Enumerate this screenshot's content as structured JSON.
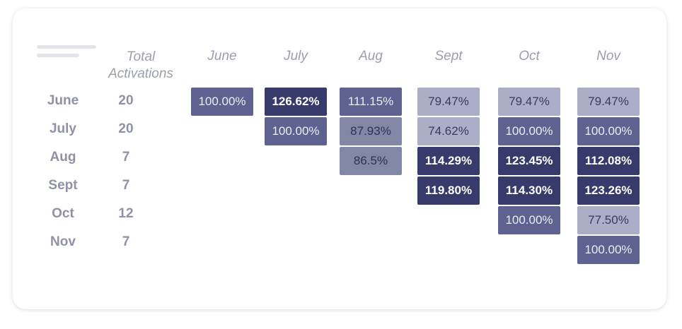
{
  "chart_data": {
    "type": "table",
    "title": "",
    "total_header": "Total Activations",
    "columns": [
      "June",
      "July",
      "Aug",
      "Sept",
      "Oct",
      "Nov"
    ],
    "rows": [
      {
        "month": "June",
        "total": "20",
        "cells": [
          "100.00%",
          "126.62%",
          "111.15%",
          "79.47%",
          "79.47%",
          "79.47%"
        ],
        "levels": [
          "mid",
          "dark",
          "mid",
          "pale",
          "pale",
          "pale"
        ]
      },
      {
        "month": "July",
        "total": "20",
        "cells": [
          null,
          "100.00%",
          "87.93%",
          "74.62%",
          "100.00%",
          "100.00%"
        ],
        "levels": [
          null,
          "mid",
          "light",
          "pale",
          "mid",
          "mid"
        ]
      },
      {
        "month": "Aug",
        "total": "7",
        "cells": [
          null,
          null,
          "86.5%",
          "114.29%",
          "123.45%",
          "112.08%"
        ],
        "levels": [
          null,
          null,
          "light",
          "dark",
          "dark",
          "dark"
        ]
      },
      {
        "month": "Sept",
        "total": "7",
        "cells": [
          null,
          null,
          null,
          "119.80%",
          "114.30%",
          "123.26%"
        ],
        "levels": [
          null,
          null,
          null,
          "dark",
          "dark",
          "dark"
        ]
      },
      {
        "month": "Oct",
        "total": "12",
        "cells": [
          null,
          null,
          null,
          null,
          "100.00%",
          "77.50%"
        ],
        "levels": [
          null,
          null,
          null,
          null,
          "mid",
          "pale"
        ]
      },
      {
        "month": "Nov",
        "total": "7",
        "cells": [
          null,
          null,
          null,
          null,
          null,
          "100.00%"
        ],
        "levels": [
          null,
          null,
          null,
          null,
          null,
          "mid"
        ]
      }
    ]
  },
  "colors": {
    "dark": "#363b6c",
    "mid": "#5d6290",
    "light": "#8387a6",
    "pale": "#abaec6",
    "header_text": "#9b9eae",
    "row_text": "#8f92a6"
  }
}
